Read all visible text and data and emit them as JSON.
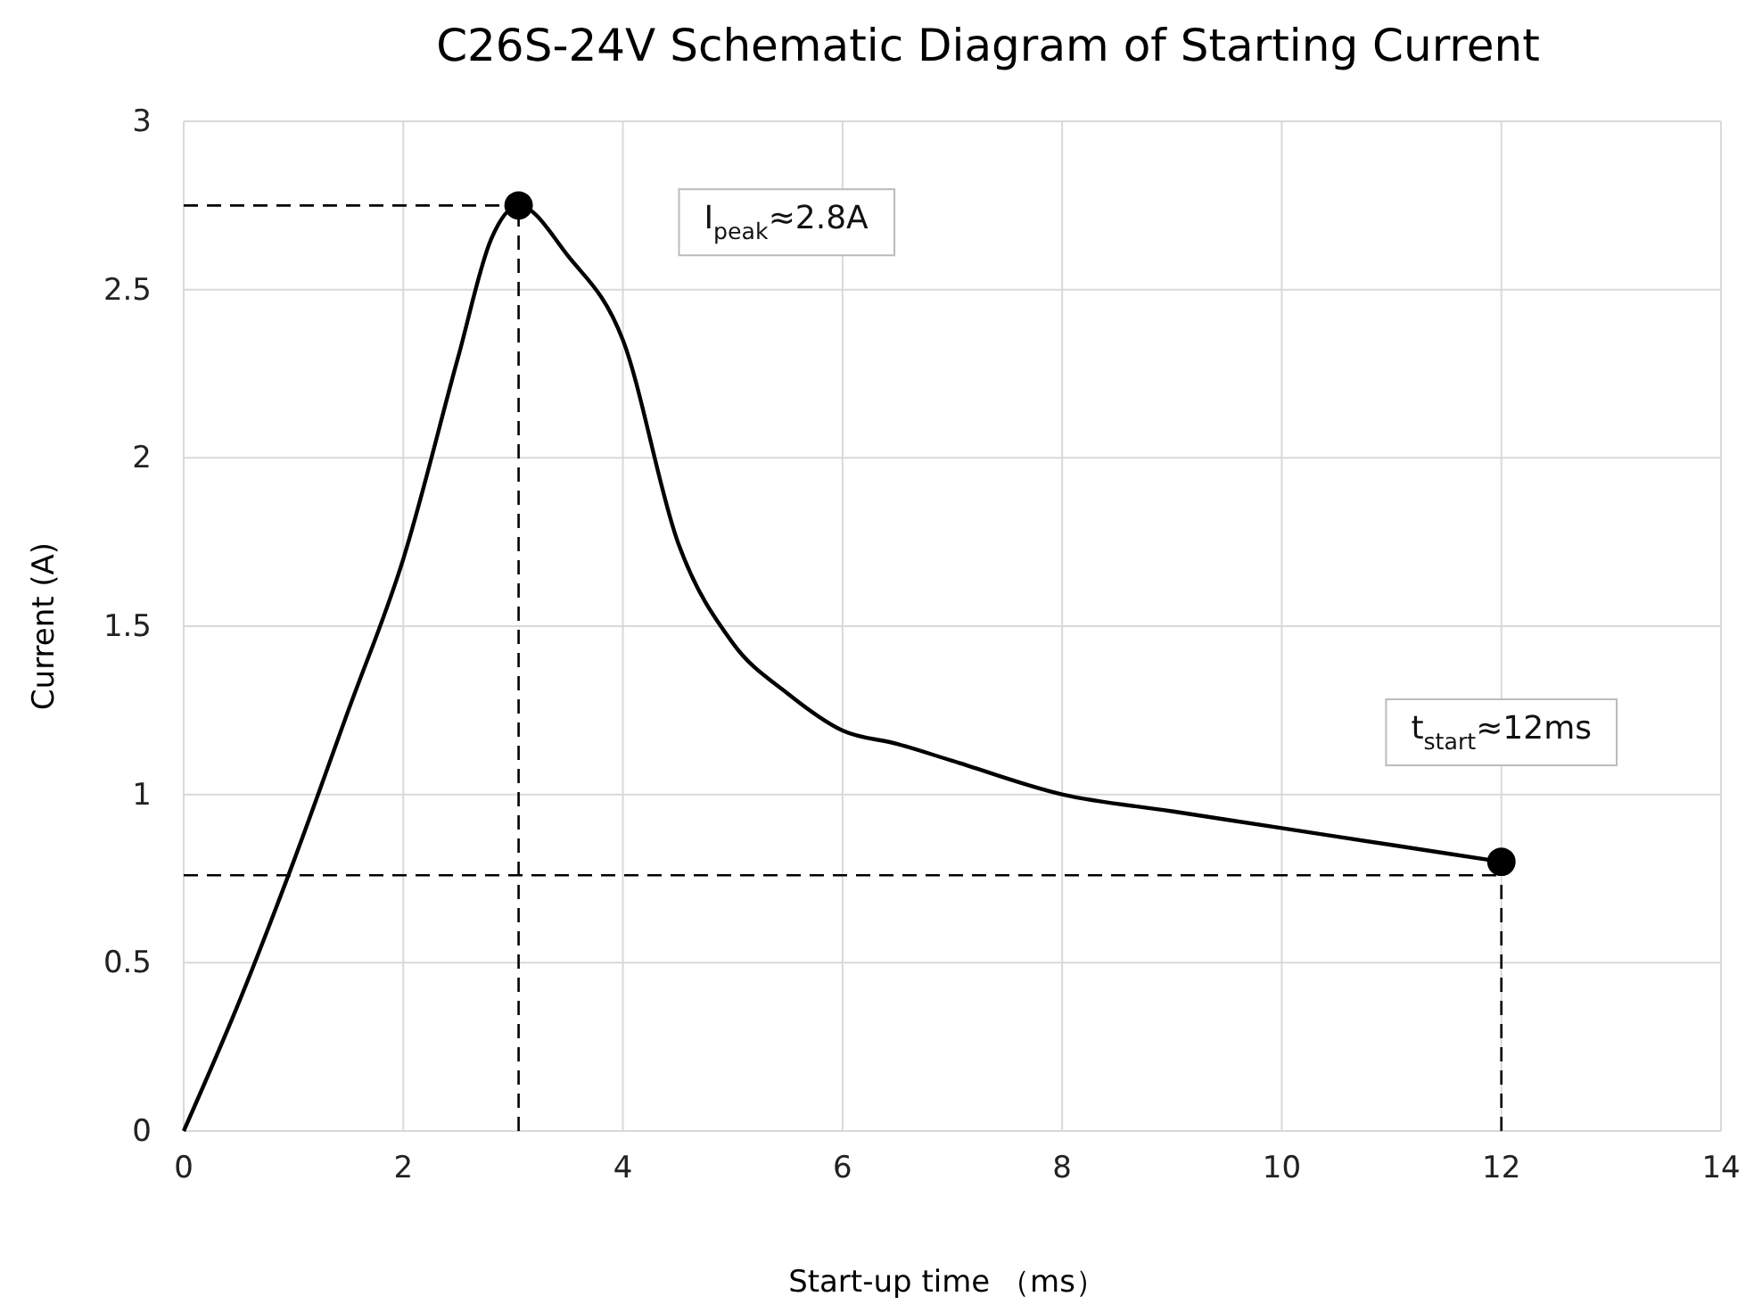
{
  "chart_data": {
    "type": "line",
    "title": "C26S-24V Schematic Diagram of Starting Current",
    "xlabel": "Start-up time （ms）",
    "ylabel": "Current (A)",
    "xlim": [
      0,
      14
    ],
    "ylim": [
      0,
      3
    ],
    "xticks": [
      0,
      2,
      4,
      6,
      8,
      10,
      12,
      14
    ],
    "yticks": [
      0,
      0.5,
      1,
      1.5,
      2,
      2.5,
      3
    ],
    "grid": true,
    "series": [
      {
        "color": "#000000",
        "marker": "none",
        "line_style": "solid",
        "x": [
          0,
          0.5,
          1,
          1.5,
          2,
          2.5,
          2.8,
          3.05,
          3.5,
          4,
          4.5,
          5,
          5.5,
          6,
          6.5,
          7,
          8,
          9,
          10,
          11,
          12
        ],
        "values": [
          0,
          0.38,
          0.8,
          1.25,
          1.7,
          2.3,
          2.65,
          2.75,
          2.6,
          2.35,
          1.75,
          1.45,
          1.3,
          1.19,
          1.15,
          1.1,
          1.0,
          0.95,
          0.9,
          0.85,
          0.8
        ]
      },
      {
        "type": "scatter",
        "color": "#000000",
        "marker": "circle",
        "x": [
          3.05,
          12
        ],
        "values": [
          2.75,
          0.8
        ]
      }
    ],
    "ref_lines": [
      {
        "axis": "y",
        "value": 2.75,
        "line_style": "dashed",
        "color": "#000000"
      },
      {
        "axis": "y",
        "value": 0.76,
        "line_style": "dashed",
        "color": "#000000"
      },
      {
        "axis": "x",
        "value": 3.05,
        "line_style": "dashed",
        "color": "#000000"
      },
      {
        "axis": "x",
        "value": 12,
        "line_style": "dashed",
        "color": "#000000"
      }
    ],
    "annotations": [
      "I$_{peak}$≈2.8A",
      "t$_{start}$≈12ms"
    ]
  }
}
